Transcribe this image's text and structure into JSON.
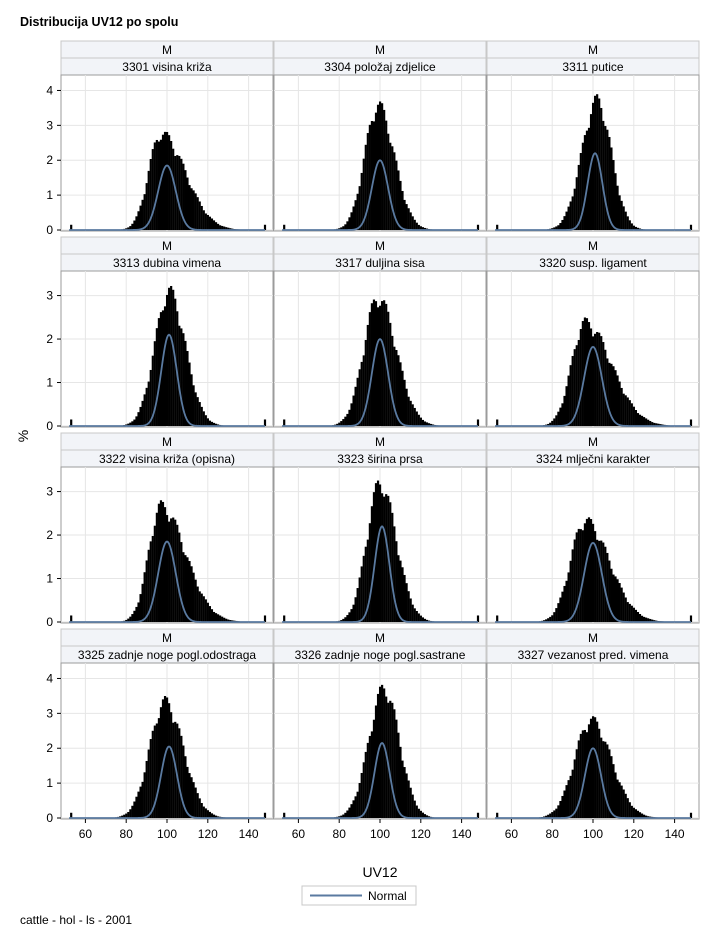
{
  "chart_data": {
    "type": "histogram-panel",
    "title": "Distribucija UV12 po spolu",
    "footnote": "cattle - hol - ls - 2001",
    "xlabel": "UV12",
    "ylabel": "%",
    "xlim": [
      50,
      150
    ],
    "x_ticks": [
      60,
      80,
      100,
      120,
      140
    ],
    "legend": [
      {
        "name": "Normal",
        "color": "#5a7aa0"
      }
    ],
    "colors": {
      "bars": "#000000",
      "curve": "#5a7aa0",
      "header_bg": "#f2f4f8",
      "grid": "#e6e6e6",
      "frame": "#9b9b9b"
    },
    "rows": [
      {
        "y_ticks": [
          0,
          1,
          2,
          3,
          4
        ],
        "ylim": [
          0,
          4.3
        ]
      },
      {
        "y_ticks": [
          0,
          1,
          2,
          3
        ],
        "ylim": [
          0,
          3.45
        ]
      },
      {
        "y_ticks": [
          0,
          1,
          2,
          3
        ],
        "ylim": [
          0,
          3.45
        ]
      },
      {
        "y_ticks": [
          0,
          1,
          2,
          3,
          4
        ],
        "ylim": [
          0,
          4.3
        ]
      }
    ],
    "panels": [
      {
        "sex": "M",
        "label": "3301 visina križa",
        "row": 0,
        "col": 0,
        "peak_x": 97,
        "peak_y": 2.9,
        "sd_left": 6,
        "sd_right": 12,
        "normal_mean": 100,
        "normal_peak": 1.85
      },
      {
        "sex": "M",
        "label": "3304 položaj zdjelice",
        "row": 0,
        "col": 1,
        "peak_x": 99,
        "peak_y": 3.75,
        "sd_left": 6.5,
        "sd_right": 8,
        "normal_mean": 100,
        "normal_peak": 2.0
      },
      {
        "sex": "M",
        "label": "3311 putice",
        "row": 0,
        "col": 2,
        "peak_x": 102,
        "peak_y": 3.9,
        "sd_left": 7.5,
        "sd_right": 7,
        "normal_mean": 101,
        "normal_peak": 2.2
      },
      {
        "sex": "M",
        "label": "3313 dubina vimena",
        "row": 1,
        "col": 0,
        "peak_x": 101,
        "peak_y": 3.25,
        "sd_left": 7,
        "sd_right": 8,
        "normal_mean": 101,
        "normal_peak": 2.1
      },
      {
        "sex": "M",
        "label": "3317 duljina sisa",
        "row": 1,
        "col": 1,
        "peak_x": 99,
        "peak_y": 3.1,
        "sd_left": 7,
        "sd_right": 9,
        "normal_mean": 100,
        "normal_peak": 2.0
      },
      {
        "sex": "M",
        "label": "3320 susp. ligament",
        "row": 1,
        "col": 2,
        "peak_x": 96,
        "peak_y": 2.5,
        "sd_left": 6.5,
        "sd_right": 13,
        "normal_mean": 100,
        "normal_peak": 1.82
      },
      {
        "sex": "M",
        "label": "3322 visina križa (opisna)",
        "row": 2,
        "col": 0,
        "peak_x": 97,
        "peak_y": 2.8,
        "sd_left": 6,
        "sd_right": 12,
        "normal_mean": 100,
        "normal_peak": 1.85
      },
      {
        "sex": "M",
        "label": "3323 širina prsa",
        "row": 2,
        "col": 1,
        "peak_x": 100,
        "peak_y": 3.35,
        "sd_left": 6.5,
        "sd_right": 8,
        "normal_mean": 101,
        "normal_peak": 2.2
      },
      {
        "sex": "M",
        "label": "3324 mlječni karakter",
        "row": 2,
        "col": 2,
        "peak_x": 96,
        "peak_y": 2.45,
        "sd_left": 7,
        "sd_right": 12,
        "normal_mean": 100,
        "normal_peak": 1.82
      },
      {
        "sex": "M",
        "label": "3325 zadnje noge pogl.odostraga",
        "row": 3,
        "col": 0,
        "peak_x": 99,
        "peak_y": 3.5,
        "sd_left": 7.5,
        "sd_right": 9,
        "normal_mean": 101,
        "normal_peak": 2.05
      },
      {
        "sex": "M",
        "label": "3326 zadnje noge pogl.sastrane",
        "row": 3,
        "col": 1,
        "peak_x": 102,
        "peak_y": 3.9,
        "sd_left": 7.5,
        "sd_right": 7.5,
        "normal_mean": 101,
        "normal_peak": 2.15
      },
      {
        "sex": "M",
        "label": "3327 vezanost pred. vimena",
        "row": 3,
        "col": 2,
        "peak_x": 99,
        "peak_y": 2.95,
        "sd_left": 8,
        "sd_right": 10,
        "normal_mean": 100,
        "normal_peak": 2.0
      }
    ]
  }
}
